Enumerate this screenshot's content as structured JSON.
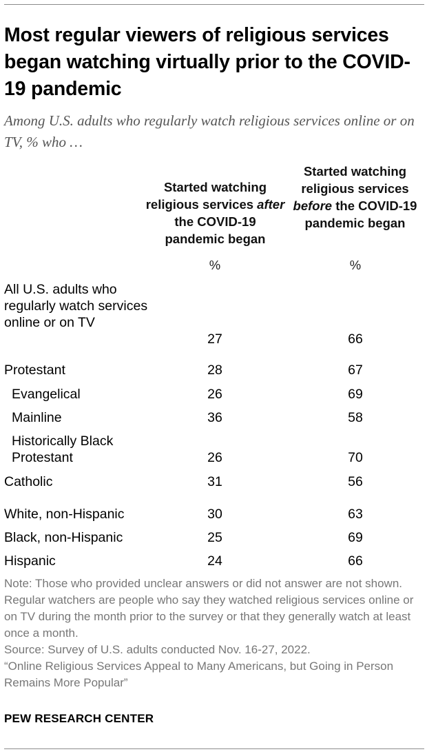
{
  "header": {
    "title": "Most regular viewers of religious services began watching virtually prior to the COVID-19 pandemic",
    "subtitle": "Among U.S. adults who regularly watch religious services online or on TV, % who …"
  },
  "chart_data": {
    "type": "table",
    "columns": [
      {
        "pre": "Started watching religious services ",
        "em": "after",
        "post": " the COVID-19 pandemic began",
        "unit": "%"
      },
      {
        "pre": "Started watching religious services ",
        "em": "before",
        "post": " the COVID-19 pandemic began",
        "unit": "%"
      }
    ],
    "rows": [
      {
        "label": "All U.S. adults who regularly watch services online or on TV",
        "after": 27,
        "before": 66
      },
      {
        "label": "Protestant",
        "after": 28,
        "before": 67
      },
      {
        "label": "Evangelical",
        "after": 26,
        "before": 69
      },
      {
        "label": "Mainline",
        "after": 36,
        "before": 58
      },
      {
        "label": "Historically Black Protestant",
        "after": 26,
        "before": 70
      },
      {
        "label": "Catholic",
        "after": 31,
        "before": 56
      },
      {
        "label": "White, non-Hispanic",
        "after": 30,
        "before": 63
      },
      {
        "label": "Black, non-Hispanic",
        "after": 25,
        "before": 69
      },
      {
        "label": "Hispanic",
        "after": 24,
        "before": 66
      }
    ]
  },
  "footer": {
    "note": "Note: Those who provided unclear answers or did not answer are not shown. Regular watchers are people who say they watched religious services online or on TV during the month prior to the survey or that they generally watch at least once a month.",
    "source": "Source: Survey of U.S. adults conducted Nov. 16-27, 2022.",
    "report": "“Online Religious Services Appeal to Many Americans, but Going in Person Remains More Popular”",
    "brand": "PEW RESEARCH CENTER"
  }
}
